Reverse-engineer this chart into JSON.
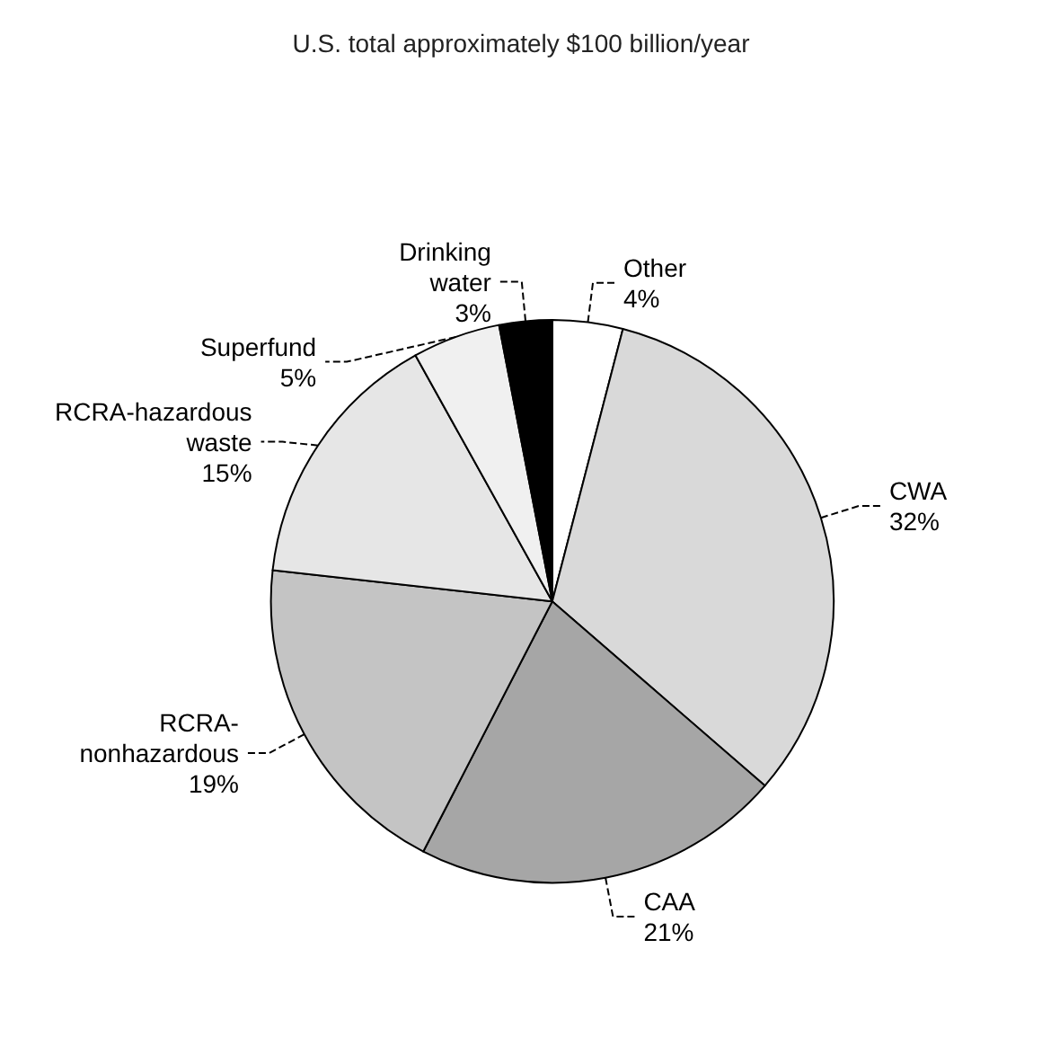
{
  "chart_data": {
    "type": "pie",
    "title": "U.S. total approximately $100 billion/year",
    "categories": [
      "Other",
      "CWA",
      "CAA",
      "RCRA-\nnonhazardous",
      "RCRA-hazardous\nwaste",
      "Superfund",
      "Drinking\nwater"
    ],
    "values": [
      4,
      32,
      21,
      19,
      15,
      5,
      3
    ],
    "value_labels": [
      "4%",
      "32%",
      "21%",
      "19%",
      "15%",
      "5%",
      "3%"
    ],
    "colors": [
      "#ffffff",
      "#d9d9d9",
      "#a6a6a6",
      "#c4c4c4",
      "#e6e6e6",
      "#f0f0f0",
      "#000000"
    ],
    "legend": false
  }
}
